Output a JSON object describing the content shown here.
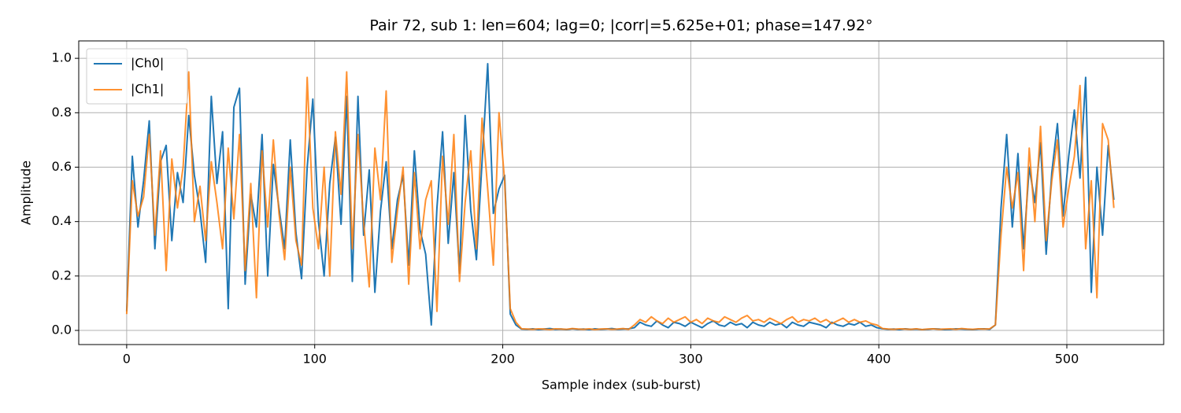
{
  "chart_data": {
    "type": "line",
    "title": "Pair 72, sub 1: len=604; lag=0; |corr|=5.625e+01; phase=147.92°",
    "xlabel": "Sample index (sub-burst)",
    "ylabel": "Amplitude",
    "x": [
      0,
      3,
      6,
      9,
      12,
      15,
      18,
      21,
      24,
      27,
      30,
      33,
      36,
      39,
      42,
      45,
      48,
      51,
      54,
      57,
      60,
      63,
      66,
      69,
      72,
      75,
      78,
      81,
      84,
      87,
      90,
      93,
      96,
      99,
      102,
      105,
      108,
      111,
      114,
      117,
      120,
      123,
      126,
      129,
      132,
      135,
      138,
      141,
      144,
      147,
      150,
      153,
      156,
      159,
      162,
      165,
      168,
      171,
      174,
      177,
      180,
      183,
      186,
      189,
      192,
      195,
      198,
      201,
      204,
      207,
      210,
      213,
      216,
      219,
      222,
      225,
      228,
      231,
      234,
      237,
      240,
      243,
      246,
      249,
      252,
      255,
      258,
      261,
      264,
      267,
      270,
      273,
      276,
      279,
      282,
      285,
      288,
      291,
      294,
      297,
      300,
      303,
      306,
      309,
      312,
      315,
      318,
      321,
      324,
      327,
      330,
      333,
      336,
      339,
      342,
      345,
      348,
      351,
      354,
      357,
      360,
      363,
      366,
      369,
      372,
      375,
      378,
      381,
      384,
      387,
      390,
      393,
      396,
      399,
      402,
      405,
      408,
      411,
      414,
      417,
      420,
      423,
      426,
      429,
      432,
      435,
      438,
      441,
      444,
      447,
      450,
      453,
      456,
      459,
      462,
      465,
      468,
      471,
      474,
      477,
      480,
      483,
      486,
      489,
      492,
      495,
      498,
      501,
      504,
      507,
      510,
      513,
      516,
      519,
      522,
      525
    ],
    "series": [
      {
        "name": "|Ch0|",
        "color": "#1f77b4",
        "opacity": 1,
        "values": [
          0.07,
          0.64,
          0.38,
          0.55,
          0.77,
          0.3,
          0.62,
          0.68,
          0.33,
          0.58,
          0.47,
          0.79,
          0.57,
          0.44,
          0.25,
          0.86,
          0.54,
          0.73,
          0.08,
          0.82,
          0.89,
          0.17,
          0.5,
          0.38,
          0.72,
          0.2,
          0.61,
          0.45,
          0.3,
          0.7,
          0.36,
          0.19,
          0.6,
          0.85,
          0.4,
          0.2,
          0.54,
          0.71,
          0.39,
          0.86,
          0.18,
          0.86,
          0.35,
          0.59,
          0.14,
          0.44,
          0.62,
          0.3,
          0.48,
          0.57,
          0.24,
          0.66,
          0.37,
          0.28,
          0.02,
          0.45,
          0.73,
          0.32,
          0.58,
          0.21,
          0.79,
          0.44,
          0.26,
          0.62,
          0.98,
          0.43,
          0.52,
          0.57,
          0.06,
          0.02,
          0.005,
          0.004,
          0.006,
          0.003,
          0.005,
          0.007,
          0.004,
          0.005,
          0.003,
          0.006,
          0.004,
          0.005,
          0.003,
          0.006,
          0.004,
          0.005,
          0.007,
          0.004,
          0.005,
          0.006,
          0.01,
          0.03,
          0.02,
          0.015,
          0.035,
          0.02,
          0.01,
          0.03,
          0.025,
          0.015,
          0.03,
          0.02,
          0.01,
          0.025,
          0.035,
          0.02,
          0.015,
          0.03,
          0.02,
          0.025,
          0.01,
          0.03,
          0.02,
          0.015,
          0.03,
          0.02,
          0.025,
          0.01,
          0.03,
          0.02,
          0.015,
          0.03,
          0.025,
          0.02,
          0.01,
          0.03,
          0.02,
          0.015,
          0.025,
          0.02,
          0.03,
          0.015,
          0.02,
          0.01,
          0.006,
          0.004,
          0.005,
          0.003,
          0.006,
          0.004,
          0.005,
          0.003,
          0.004,
          0.006,
          0.005,
          0.003,
          0.004,
          0.006,
          0.005,
          0.004,
          0.003,
          0.005,
          0.006,
          0.004,
          0.02,
          0.45,
          0.72,
          0.38,
          0.65,
          0.3,
          0.6,
          0.47,
          0.69,
          0.28,
          0.58,
          0.76,
          0.42,
          0.64,
          0.81,
          0.56,
          0.93,
          0.14,
          0.6,
          0.35,
          0.68,
          0.48
        ]
      },
      {
        "name": "|Ch1|",
        "color": "#ff7f0e",
        "opacity": 0.85,
        "values": [
          0.06,
          0.55,
          0.42,
          0.49,
          0.72,
          0.35,
          0.66,
          0.22,
          0.63,
          0.45,
          0.6,
          0.95,
          0.4,
          0.53,
          0.33,
          0.62,
          0.47,
          0.3,
          0.67,
          0.41,
          0.72,
          0.22,
          0.54,
          0.12,
          0.66,
          0.38,
          0.7,
          0.43,
          0.26,
          0.6,
          0.33,
          0.24,
          0.93,
          0.45,
          0.3,
          0.6,
          0.2,
          0.73,
          0.5,
          0.95,
          0.3,
          0.72,
          0.4,
          0.16,
          0.67,
          0.48,
          0.88,
          0.25,
          0.44,
          0.6,
          0.17,
          0.58,
          0.3,
          0.48,
          0.55,
          0.07,
          0.64,
          0.39,
          0.72,
          0.18,
          0.47,
          0.66,
          0.3,
          0.78,
          0.52,
          0.24,
          0.8,
          0.55,
          0.08,
          0.03,
          0.006,
          0.005,
          0.004,
          0.006,
          0.005,
          0.003,
          0.006,
          0.005,
          0.004,
          0.007,
          0.005,
          0.004,
          0.006,
          0.003,
          0.005,
          0.006,
          0.004,
          0.005,
          0.007,
          0.004,
          0.02,
          0.04,
          0.03,
          0.05,
          0.035,
          0.025,
          0.045,
          0.03,
          0.04,
          0.05,
          0.03,
          0.04,
          0.025,
          0.045,
          0.035,
          0.03,
          0.05,
          0.04,
          0.03,
          0.045,
          0.055,
          0.035,
          0.04,
          0.03,
          0.045,
          0.035,
          0.025,
          0.04,
          0.05,
          0.03,
          0.04,
          0.035,
          0.045,
          0.03,
          0.04,
          0.025,
          0.035,
          0.045,
          0.03,
          0.04,
          0.03,
          0.035,
          0.025,
          0.02,
          0.007,
          0.005,
          0.004,
          0.006,
          0.005,
          0.004,
          0.006,
          0.003,
          0.005,
          0.006,
          0.004,
          0.005,
          0.006,
          0.004,
          0.007,
          0.005,
          0.004,
          0.006,
          0.005,
          0.006,
          0.02,
          0.35,
          0.6,
          0.45,
          0.58,
          0.22,
          0.67,
          0.4,
          0.75,
          0.33,
          0.55,
          0.7,
          0.38,
          0.52,
          0.64,
          0.9,
          0.3,
          0.55,
          0.12,
          0.76,
          0.7,
          0.45
        ]
      }
    ],
    "xlim": [
      -25.5,
      551.5
    ],
    "xticks": [
      0,
      100,
      200,
      300,
      400,
      500
    ],
    "ylim": [
      -0.052,
      1.064
    ],
    "yticks": [
      {
        "value": 0,
        "label": "0.0"
      },
      {
        "value": 0.2,
        "label": "0.2"
      },
      {
        "value": 0.4,
        "label": "0.4"
      },
      {
        "value": 0.6,
        "label": "0.6"
      },
      {
        "value": 0.8,
        "label": "0.8"
      },
      {
        "value": 1,
        "label": "1.0"
      }
    ],
    "grid": true,
    "legend": "upper-left"
  }
}
